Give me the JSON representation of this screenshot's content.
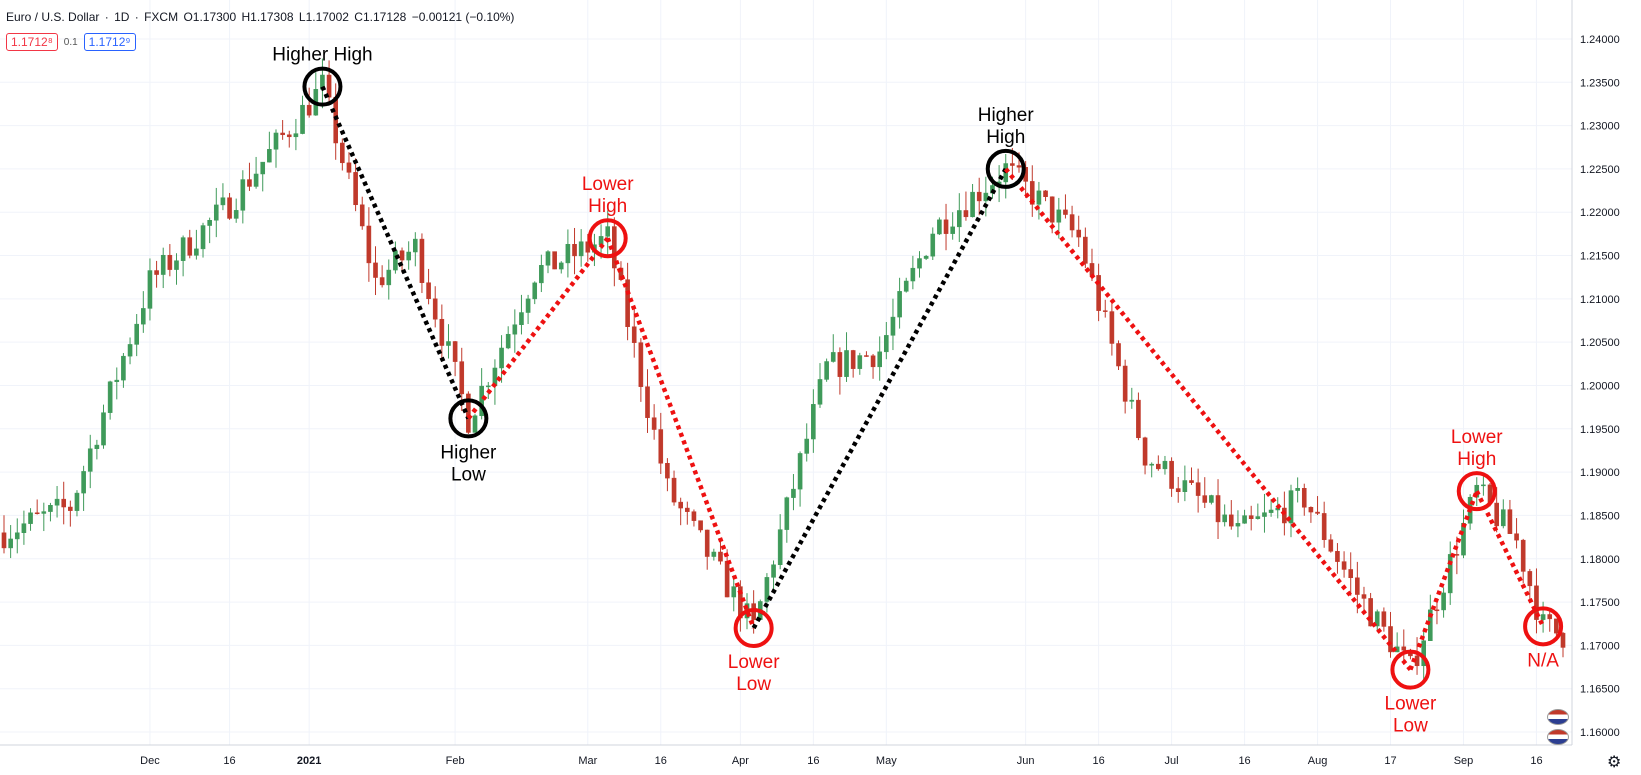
{
  "header": {
    "symbol": "Euro / U.S. Dollar",
    "interval": "1D",
    "exchange": "FXCM",
    "open": "O1.17300",
    "high": "H1.17308",
    "low": "L1.17002",
    "close": "C1.17128",
    "change": "−0.00121 (−0.10%)"
  },
  "trade": {
    "sell": "1.1712⁸",
    "spread": "0.1",
    "buy": "1.1712⁹"
  },
  "colors": {
    "up": "#26a69a",
    "down": "#ef5350",
    "candle_up": "#3f9a5a",
    "candle_down": "#c0392b",
    "red_ann": "#ee1111",
    "black_ann": "#000000",
    "grid": "#f0f3fa"
  },
  "icons": {
    "settings": "gear-icon",
    "flags": "currency-flag-icon"
  },
  "chart_data": {
    "type": "candlestick",
    "title": "Euro / U.S. Dollar · 1D · FXCM",
    "ylim": [
      1.1585,
      1.2445
    ],
    "yticks": [
      "1.24000",
      "1.23500",
      "1.23000",
      "1.22500",
      "1.22000",
      "1.21500",
      "1.21000",
      "1.20500",
      "1.20000",
      "1.19500",
      "1.19000",
      "1.18500",
      "1.18000",
      "1.17500",
      "1.17000",
      "1.16500",
      "1.16000"
    ],
    "ytick_values": [
      1.24,
      1.235,
      1.23,
      1.225,
      1.22,
      1.215,
      1.21,
      1.205,
      1.2,
      1.195,
      1.19,
      1.185,
      1.18,
      1.175,
      1.17,
      1.165,
      1.16
    ],
    "xticks": [
      {
        "label": "Dec",
        "bar": 22
      },
      {
        "label": "16",
        "bar": 34
      },
      {
        "label": "2021",
        "bar": 46
      },
      {
        "label": "Feb",
        "bar": 68
      },
      {
        "label": "Mar",
        "bar": 88
      },
      {
        "label": "16",
        "bar": 99
      },
      {
        "label": "Apr",
        "bar": 111
      },
      {
        "label": "16",
        "bar": 122
      },
      {
        "label": "May",
        "bar": 133
      },
      {
        "label": "Jun",
        "bar": 154
      },
      {
        "label": "16",
        "bar": 165
      },
      {
        "label": "Jul",
        "bar": 176
      },
      {
        "label": "16",
        "bar": 187
      },
      {
        "label": "Aug",
        "bar": 198
      },
      {
        "label": "17",
        "bar": 209
      },
      {
        "label": "Sep",
        "bar": 220
      },
      {
        "label": "16",
        "bar": 231
      }
    ],
    "pivots": [
      {
        "bar": 48,
        "price": 1.2345
      },
      {
        "bar": 70,
        "price": 1.1962
      },
      {
        "bar": 91,
        "price": 1.217
      },
      {
        "bar": 113,
        "price": 1.172
      },
      {
        "bar": 151,
        "price": 1.225
      },
      {
        "bar": 212,
        "price": 1.1672
      },
      {
        "bar": 222,
        "price": 1.1878
      },
      {
        "bar": 232,
        "price": 1.1722
      }
    ],
    "annotations": [
      {
        "text": "Higher High",
        "bar": 48,
        "price": 1.2345,
        "color": "black",
        "pos": "above"
      },
      {
        "text": "Higher Low",
        "bar": 70,
        "price": 1.1962,
        "color": "black",
        "pos": "below"
      },
      {
        "text": "Lower High",
        "bar": 91,
        "price": 1.217,
        "color": "red",
        "pos": "above"
      },
      {
        "text": "Lower Low",
        "bar": 113,
        "price": 1.172,
        "color": "red",
        "pos": "below"
      },
      {
        "text": "Higher High",
        "bar": 151,
        "price": 1.225,
        "color": "black",
        "pos": "above"
      },
      {
        "text": "Lower Low",
        "bar": 212,
        "price": 1.1672,
        "color": "red",
        "pos": "below"
      },
      {
        "text": "Lower High",
        "bar": 222,
        "price": 1.1878,
        "color": "red",
        "pos": "above"
      },
      {
        "text": "N/A",
        "bar": 232,
        "price": 1.1722,
        "color": "red",
        "pos": "below"
      }
    ],
    "segments": [
      {
        "from": 0,
        "to": 1,
        "color": "black"
      },
      {
        "from": 1,
        "to": 2,
        "color": "red"
      },
      {
        "from": 2,
        "to": 3,
        "color": "red"
      },
      {
        "from": 3,
        "to": 4,
        "color": "black"
      },
      {
        "from": 4,
        "to": 5,
        "color": "red"
      },
      {
        "from": 5,
        "to": 6,
        "color": "red"
      },
      {
        "from": 6,
        "to": 7,
        "color": "red"
      }
    ],
    "bar_count": 236,
    "grid": true
  }
}
